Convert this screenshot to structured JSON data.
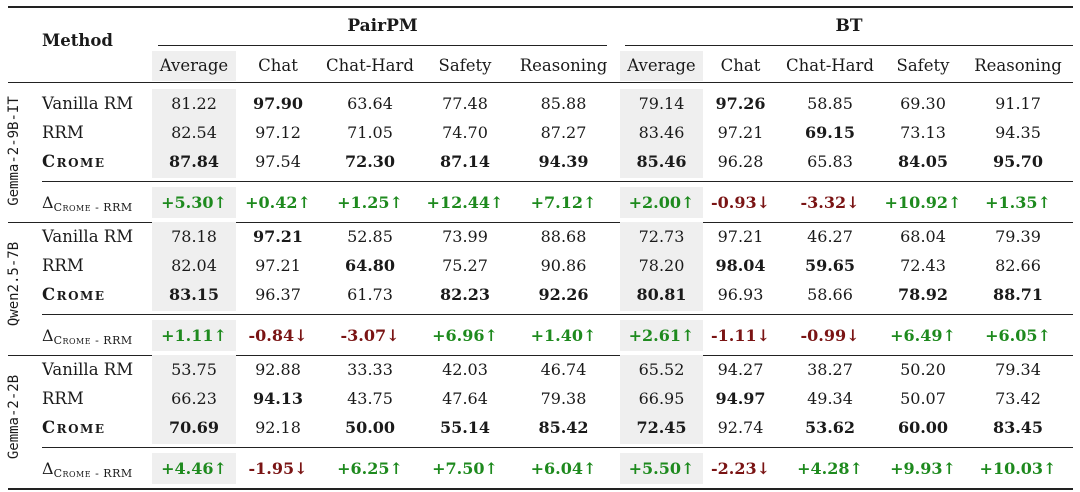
{
  "header": {
    "method_label": "Method",
    "groups": [
      "PairPM",
      "BT"
    ],
    "columns": [
      "Average",
      "Chat",
      "Chat-Hard",
      "Safety",
      "Reasoning",
      "Average",
      "Chat",
      "Chat-Hard",
      "Safety",
      "Reasoning"
    ]
  },
  "delta_label": {
    "symbol": "Δ",
    "sub": "Crome - RRM"
  },
  "blocks": [
    {
      "model": "Gemma-2-9B-IT",
      "rows": [
        {
          "method": "Vanilla RM",
          "style": "normal",
          "values": [
            "81.22",
            "97.90",
            "63.64",
            "77.48",
            "85.88",
            "79.14",
            "97.26",
            "58.85",
            "69.30",
            "91.17"
          ],
          "bold": [
            false,
            true,
            false,
            false,
            false,
            false,
            true,
            false,
            false,
            false
          ]
        },
        {
          "method": "RRM",
          "style": "normal",
          "values": [
            "82.54",
            "97.12",
            "71.05",
            "74.70",
            "87.27",
            "83.46",
            "97.21",
            "69.15",
            "73.13",
            "94.35"
          ],
          "bold": [
            false,
            false,
            false,
            false,
            false,
            false,
            false,
            true,
            false,
            false
          ]
        },
        {
          "method": "Crome",
          "style": "crome",
          "values": [
            "87.84",
            "97.54",
            "72.30",
            "87.14",
            "94.39",
            "85.46",
            "96.28",
            "65.83",
            "84.05",
            "95.70"
          ],
          "bold": [
            true,
            false,
            true,
            true,
            true,
            true,
            false,
            false,
            true,
            true
          ]
        }
      ],
      "delta": [
        "+5.30↑",
        "+0.42↑",
        "+1.25↑",
        "+12.44↑",
        "+7.12↑",
        "+2.00↑",
        "-0.93↓",
        "-3.32↓",
        "+10.92↑",
        "+1.35↑"
      ]
    },
    {
      "model": "Qwen2.5-7B",
      "rows": [
        {
          "method": "Vanilla RM",
          "style": "normal",
          "values": [
            "78.18",
            "97.21",
            "52.85",
            "73.99",
            "88.68",
            "72.73",
            "97.21",
            "46.27",
            "68.04",
            "79.39"
          ],
          "bold": [
            false,
            true,
            false,
            false,
            false,
            false,
            false,
            false,
            false,
            false
          ]
        },
        {
          "method": "RRM",
          "style": "normal",
          "values": [
            "82.04",
            "97.21",
            "64.80",
            "75.27",
            "90.86",
            "78.20",
            "98.04",
            "59.65",
            "72.43",
            "82.66"
          ],
          "bold": [
            false,
            false,
            true,
            false,
            false,
            false,
            true,
            true,
            false,
            false
          ]
        },
        {
          "method": "Crome",
          "style": "crome",
          "values": [
            "83.15",
            "96.37",
            "61.73",
            "82.23",
            "92.26",
            "80.81",
            "96.93",
            "58.66",
            "78.92",
            "88.71"
          ],
          "bold": [
            true,
            false,
            false,
            true,
            true,
            true,
            false,
            false,
            true,
            true
          ]
        }
      ],
      "delta": [
        "+1.11↑",
        "-0.84↓",
        "-3.07↓",
        "+6.96↑",
        "+1.40↑",
        "+2.61↑",
        "-1.11↓",
        "-0.99↓",
        "+6.49↑",
        "+6.05↑"
      ]
    },
    {
      "model": "Gemma-2-2B",
      "rows": [
        {
          "method": "Vanilla RM",
          "style": "normal",
          "values": [
            "53.75",
            "92.88",
            "33.33",
            "42.03",
            "46.74",
            "65.52",
            "94.27",
            "38.27",
            "50.20",
            "79.34"
          ],
          "bold": [
            false,
            false,
            false,
            false,
            false,
            false,
            false,
            false,
            false,
            false
          ]
        },
        {
          "method": "RRM",
          "style": "normal",
          "values": [
            "66.23",
            "94.13",
            "43.75",
            "47.64",
            "79.38",
            "66.95",
            "94.97",
            "49.34",
            "50.07",
            "73.42"
          ],
          "bold": [
            false,
            true,
            false,
            false,
            false,
            false,
            true,
            false,
            false,
            false
          ]
        },
        {
          "method": "Crome",
          "style": "crome",
          "values": [
            "70.69",
            "92.18",
            "50.00",
            "55.14",
            "85.42",
            "72.45",
            "92.74",
            "53.62",
            "60.00",
            "83.45"
          ],
          "bold": [
            true,
            false,
            true,
            true,
            true,
            true,
            false,
            true,
            true,
            true
          ]
        }
      ],
      "delta": [
        "+4.46↑",
        "-1.95↓",
        "+6.25↑",
        "+7.50↑",
        "+6.04↑",
        "+5.50↑",
        "-2.23↓",
        "+4.28↑",
        "+9.93↑",
        "+10.03↑"
      ]
    }
  ]
}
